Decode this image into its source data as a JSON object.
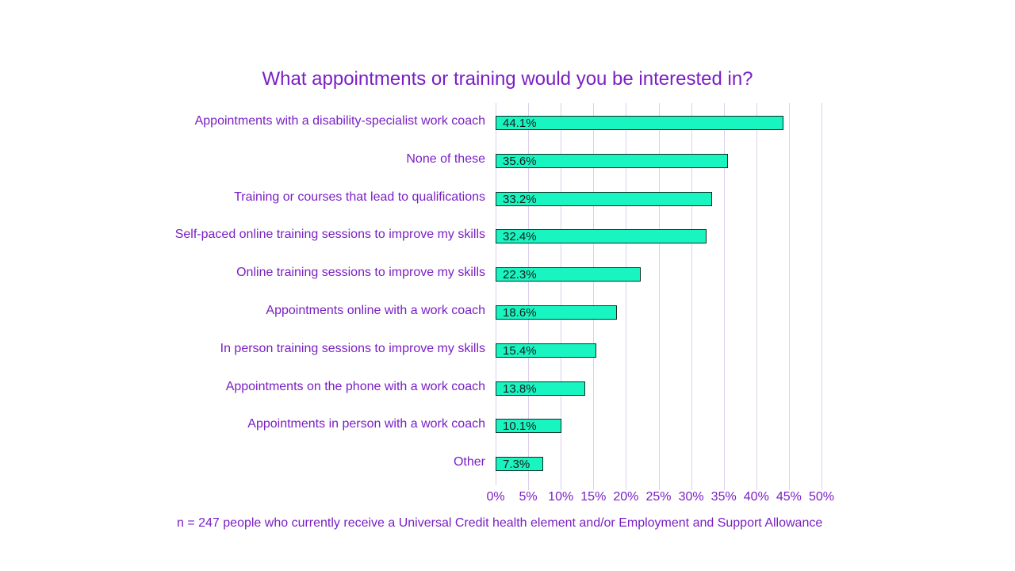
{
  "chart_data": {
    "type": "bar",
    "orientation": "horizontal",
    "title": "What appointments or training would you be interested in?",
    "xlabel": "",
    "ylabel": "",
    "xlim": [
      0,
      50
    ],
    "grid": true,
    "legend": null,
    "categories": [
      "Appointments with a disability-specialist work coach",
      "None of these",
      "Training or courses that lead to qualifications",
      "Self-paced online training sessions to improve my skills",
      "Online training sessions to improve my skills",
      "Appointments online with a work coach",
      "In person training sessions to improve my skills",
      "Appointments on the phone with a work coach",
      "Appointments in person with a work coach",
      "Other"
    ],
    "values": [
      44.1,
      35.6,
      33.2,
      32.4,
      22.3,
      18.6,
      15.4,
      13.8,
      10.1,
      7.3
    ],
    "value_labels": [
      "44.1%",
      "35.6%",
      "33.2%",
      "32.4%",
      "22.3%",
      "18.6%",
      "15.4%",
      "13.8%",
      "10.1%",
      "7.3%"
    ],
    "x_ticks": [
      "0%",
      "5%",
      "10%",
      "15%",
      "20%",
      "25%",
      "30%",
      "35%",
      "40%",
      "45%",
      "50%"
    ],
    "annotations": [
      "n = 247 people who currently receive a Universal Credit health element and/or Employment and Support Allowance"
    ]
  },
  "colors": {
    "bar_fill": "#19f5c1",
    "bar_border": "#0d2b22",
    "text": "#7a1fc4",
    "grid": "#dcd0ee"
  },
  "footnote": "n = 247 people who currently receive a Universal Credit health element and/or Employment and Support Allowance"
}
